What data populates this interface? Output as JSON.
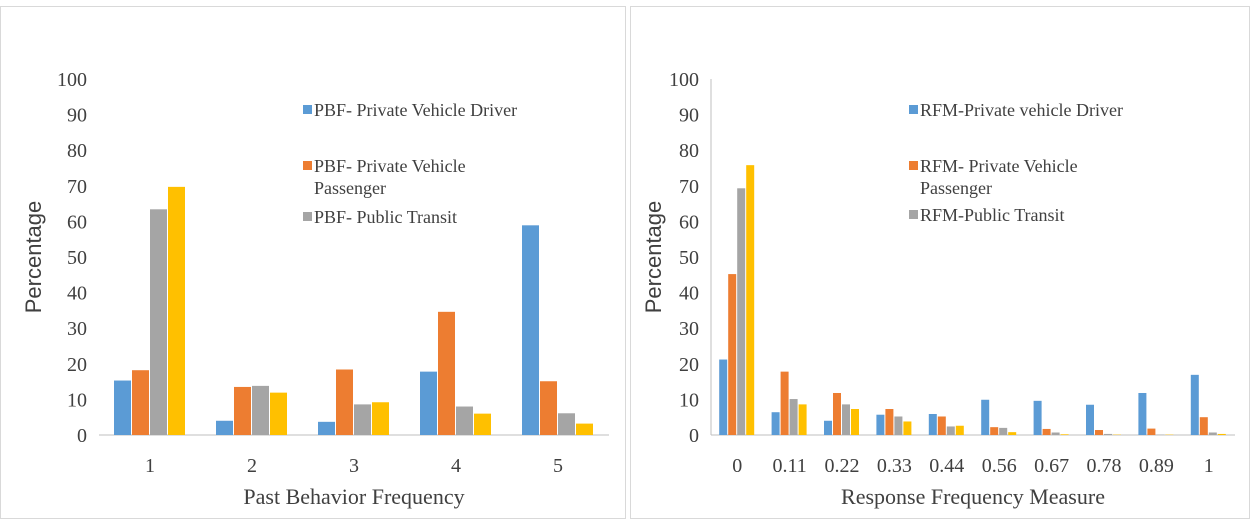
{
  "chart_data": [
    {
      "type": "bar",
      "title": "",
      "xlabel": "Past Behavior Frequency",
      "ylabel": "Percentage",
      "ylim": [
        0,
        100
      ],
      "yticks": [
        "0",
        "10",
        "20",
        "30",
        "40",
        "50",
        "60",
        "70",
        "80",
        "90",
        "100"
      ],
      "categories": [
        "1",
        "2",
        "3",
        "4",
        "5"
      ],
      "grid": false,
      "legend_position": "top-right",
      "legend": [
        "PBF- Private Vehicle Driver",
        "PBF- Private Vehicle Passenger",
        "PBF- Public Transit"
      ],
      "series": [
        {
          "name": "PBF- Private Vehicle Driver",
          "color": "#5B9BD5",
          "values": [
            15.3,
            4.0,
            3.7,
            17.8,
            58.9
          ]
        },
        {
          "name": "PBF- Private Vehicle Passenger",
          "color": "#ED7D31",
          "values": [
            18.2,
            13.5,
            18.4,
            34.6,
            15.1
          ]
        },
        {
          "name": "PBF- Public Transit",
          "color": "#A5A5A5",
          "values": [
            63.4,
            13.8,
            8.6,
            8.0,
            6.1
          ]
        },
        {
          "color": "#FFC000",
          "values": [
            69.7,
            11.9,
            9.2,
            6.0,
            3.2
          ]
        }
      ]
    },
    {
      "type": "bar",
      "title": "",
      "xlabel": "Response Frequency Measure",
      "ylabel": "Percentage",
      "ylim": [
        0,
        100
      ],
      "yticks": [
        "0",
        "10",
        "20",
        "30",
        "40",
        "50",
        "60",
        "70",
        "80",
        "90",
        "100"
      ],
      "categories": [
        "0",
        "0.11",
        "0.22",
        "0.33",
        "0.44",
        "0.56",
        "0.67",
        "0.78",
        "0.89",
        "1"
      ],
      "grid": false,
      "legend_position": "top-right",
      "legend": [
        "RFM-Private vehicle Driver",
        "RFM- Private Vehicle Passenger",
        "RFM-Public Transit"
      ],
      "series": [
        {
          "name": "RFM-Private vehicle Driver",
          "color": "#5B9BD5",
          "values": [
            21.2,
            6.4,
            4.0,
            5.7,
            5.9,
            9.9,
            9.6,
            8.5,
            11.8,
            16.9
          ]
        },
        {
          "name": "RFM- Private Vehicle Passenger",
          "color": "#ED7D31",
          "values": [
            45.2,
            17.8,
            11.8,
            7.3,
            5.2,
            2.2,
            1.7,
            1.4,
            1.8,
            5.0
          ]
        },
        {
          "name": "RFM-Public Transit",
          "color": "#A5A5A5",
          "values": [
            69.3,
            10.1,
            8.6,
            5.2,
            2.4,
            2.0,
            0.7,
            0.3,
            0.1,
            0.7
          ]
        },
        {
          "color": "#FFC000",
          "values": [
            75.8,
            8.6,
            7.3,
            3.8,
            2.6,
            0.8,
            0.2,
            0.1,
            0.1,
            0.3
          ]
        }
      ]
    }
  ]
}
